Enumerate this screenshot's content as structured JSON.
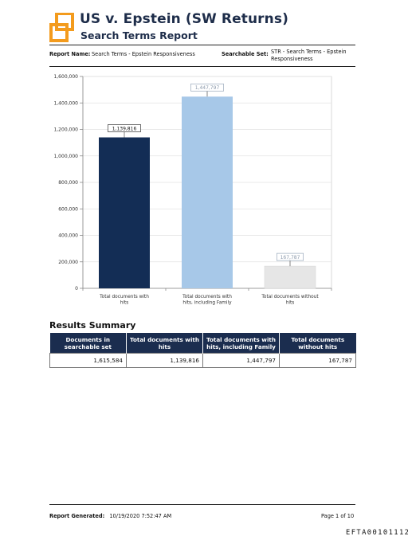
{
  "header": {
    "title": "US v. Epstein (SW Returns)",
    "subtitle": "Search Terms Report"
  },
  "report_info": {
    "report_name_label": "Report Name:",
    "report_name_value": "Search Terms - Epstein Responsiveness",
    "searchable_set_label": "Searchable Set:",
    "searchable_set_value_line1": "STR - Search Terms - Epstein",
    "searchable_set_value_line2": "Responsiveness"
  },
  "chart_data": {
    "type": "bar",
    "categories": [
      [
        "Total documents with",
        "hits"
      ],
      [
        "Total documents with",
        "hits, including Family"
      ],
      [
        "Total documents without",
        "hits"
      ]
    ],
    "values": [
      1139816,
      1447797,
      167787
    ],
    "data_labels": [
      "1,139,816",
      "1,447,797",
      "167,787"
    ],
    "colors": [
      "#132d55",
      "#a7c8e8",
      "#e6e6e6"
    ],
    "ylim": [
      0,
      1600000
    ],
    "yticks": [
      0,
      200000,
      400000,
      600000,
      800000,
      1000000,
      1200000,
      1400000,
      1600000
    ],
    "ytick_labels": [
      "0",
      "200,000",
      "400,000",
      "600,000",
      "800,000",
      "1,000,000",
      "1,200,000",
      "1,400,000",
      "1,600,000"
    ],
    "grid": true,
    "title": "",
    "xlabel": "",
    "ylabel": ""
  },
  "summary": {
    "title": "Results Summary",
    "headers": [
      [
        "Documents in",
        "searchable set"
      ],
      [
        "Total documents with",
        "hits"
      ],
      [
        "Total documents with",
        "hits, including Family"
      ],
      [
        "Total documents",
        "without hits"
      ]
    ],
    "values": [
      "1,615,584",
      "1,139,816",
      "1,447,797",
      "167,787"
    ]
  },
  "footer": {
    "generated_label": "Report Generated:",
    "generated_value": "10/19/2020 7:52:47 AM",
    "page": "Page 1 of 10"
  },
  "bates": "EFTA00101112"
}
